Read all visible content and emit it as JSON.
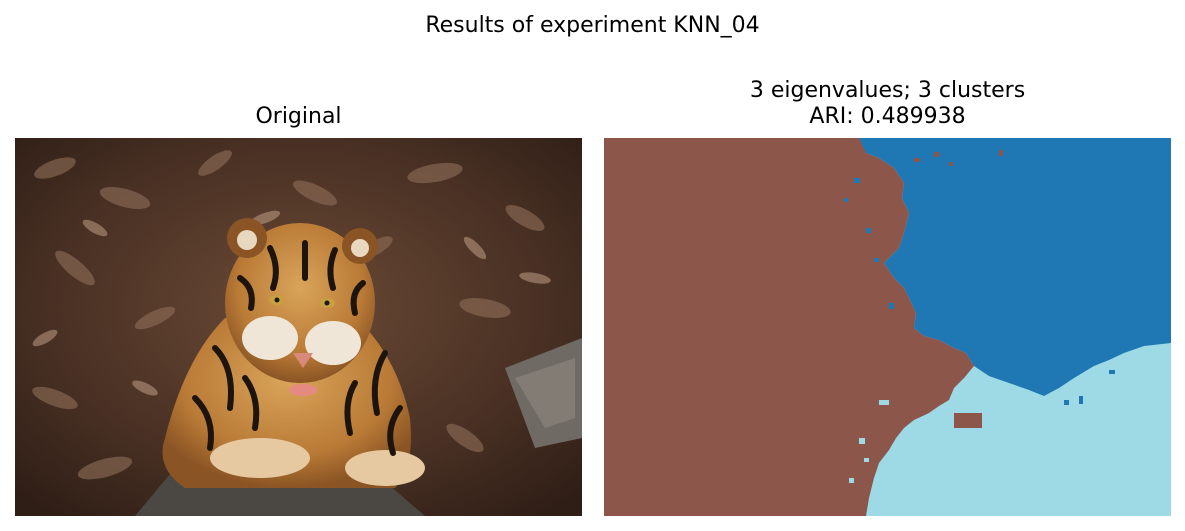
{
  "figure": {
    "suptitle": "Results of experiment KNN_04"
  },
  "panels": [
    {
      "title": "Original",
      "content": "photograph of a tiger lying among dry brown leaves and rocks"
    },
    {
      "title_line1": "3 eigenvalues; 3 clusters",
      "title_line2": "ARI: 0.489938",
      "segmentation_colors": {
        "cluster_brown": "#8c564b",
        "cluster_blue": "#1f77b4",
        "cluster_light_blue": "#9edae5"
      }
    }
  ]
}
